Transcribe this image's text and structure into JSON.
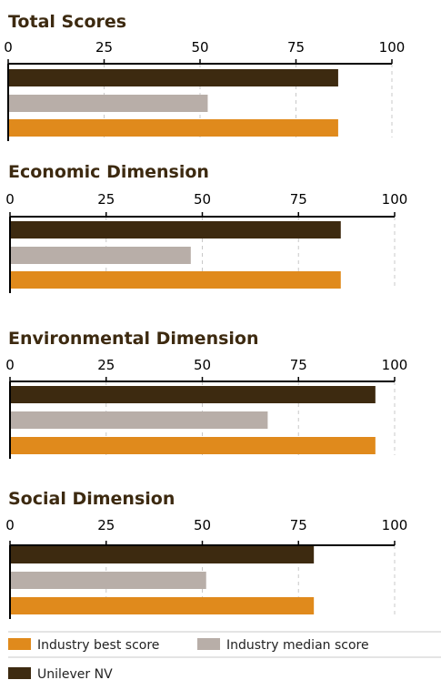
{
  "chart_data": [
    {
      "type": "bar",
      "orientation": "horizontal",
      "title": "Total Scores",
      "xlim": [
        0,
        100
      ],
      "ticks": [
        "0",
        "25",
        "50",
        "75",
        "100"
      ],
      "grid": true,
      "series": [
        {
          "name": "Unilever NV",
          "value": 86
        },
        {
          "name": "Industry median score",
          "value": 52
        },
        {
          "name": "Industry best score",
          "value": 86
        }
      ]
    },
    {
      "type": "bar",
      "orientation": "horizontal",
      "title": "Economic Dimension",
      "xlim": [
        0,
        100
      ],
      "ticks": [
        "0",
        "25",
        "50",
        "75",
        "100"
      ],
      "grid": true,
      "series": [
        {
          "name": "Unilever NV",
          "value": 86
        },
        {
          "name": "Industry median score",
          "value": 47
        },
        {
          "name": "Industry best score",
          "value": 86
        }
      ]
    },
    {
      "type": "bar",
      "orientation": "horizontal",
      "title": "Environmental Dimension",
      "xlim": [
        0,
        100
      ],
      "ticks": [
        "0",
        "25",
        "50",
        "75",
        "100"
      ],
      "grid": true,
      "series": [
        {
          "name": "Unilever NV",
          "value": 95
        },
        {
          "name": "Industry median score",
          "value": 67
        },
        {
          "name": "Industry best score",
          "value": 95
        }
      ]
    },
    {
      "type": "bar",
      "orientation": "horizontal",
      "title": "Social Dimension",
      "xlim": [
        0,
        100
      ],
      "ticks": [
        "0",
        "25",
        "50",
        "75",
        "100"
      ],
      "grid": true,
      "series": [
        {
          "name": "Unilever NV",
          "value": 79
        },
        {
          "name": "Industry median score",
          "value": 51
        },
        {
          "name": "Industry best score",
          "value": 79
        }
      ]
    }
  ],
  "colors": {
    "Unilever NV": "#3d2a10",
    "Industry median score": "#b8aea8",
    "Industry best score": "#e08a1c",
    "title": "#3d2a10",
    "axis": "#000000",
    "grid": "#c8c8c8"
  },
  "legend": [
    {
      "label": "Industry best score",
      "color": "#e08a1c"
    },
    {
      "label": "Industry median score",
      "color": "#b8aea8"
    },
    {
      "label": "Unilever NV",
      "color": "#3d2a10"
    }
  ]
}
